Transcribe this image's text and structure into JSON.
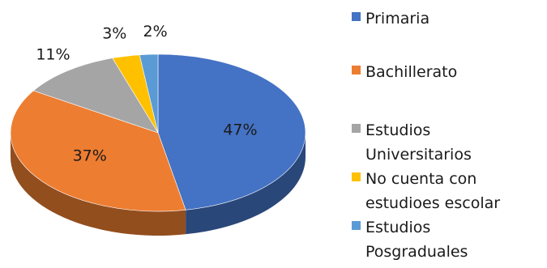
{
  "chart_data": {
    "type": "pie",
    "title": "",
    "categories": [
      "Primaria",
      "Bachillerato",
      "Estudios Universitarios",
      "No cuenta con estudioes escolar",
      "Estudios Posgraduales"
    ],
    "values": [
      47,
      37,
      11,
      3,
      2
    ],
    "labels": [
      "47%",
      "37%",
      "11%",
      "3%",
      "2%"
    ],
    "colors": [
      "#4472C4",
      "#ED7D31",
      "#A5A5A5",
      "#FFC000",
      "#5B9BD5"
    ],
    "is_3d": true,
    "legend_position": "right",
    "legend": [
      {
        "lines": [
          "Primaria"
        ]
      },
      {
        "lines": [
          "Bachillerato"
        ]
      },
      {
        "lines": [
          "Estudios",
          "Universitarios"
        ]
      },
      {
        "lines": [
          "No cuenta con",
          "estudioes escolar"
        ]
      },
      {
        "lines": [
          "Estudios",
          "Posgraduales"
        ]
      }
    ]
  }
}
